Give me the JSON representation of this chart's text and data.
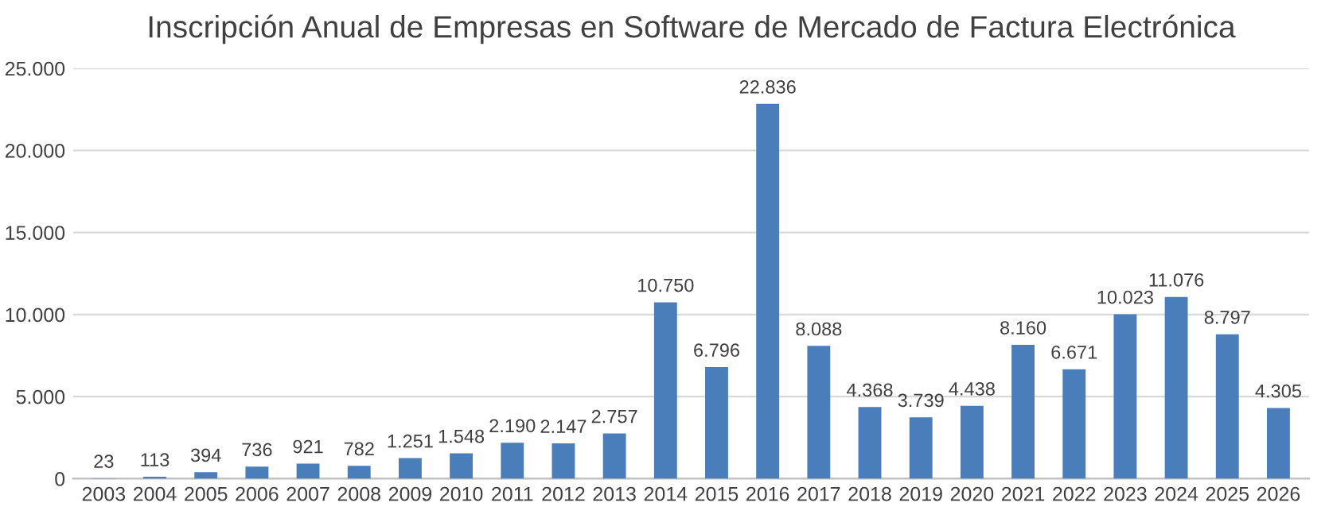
{
  "chart_data": {
    "type": "bar",
    "title": "Inscripción Anual de Empresas en Software de Mercado de Factura Electrónica",
    "categories": [
      "2003",
      "2004",
      "2005",
      "2006",
      "2007",
      "2008",
      "2009",
      "2010",
      "2011",
      "2012",
      "2013",
      "2014",
      "2015",
      "2016",
      "2017",
      "2018",
      "2019",
      "2020",
      "2021",
      "2022",
      "2023",
      "2024",
      "2025",
      "2026"
    ],
    "values": [
      23,
      113,
      394,
      736,
      921,
      782,
      1251,
      1548,
      2190,
      2147,
      2757,
      10750,
      6796,
      22836,
      8088,
      4368,
      3739,
      4438,
      8160,
      6671,
      10023,
      11076,
      8797,
      4305
    ],
    "value_labels": [
      "23",
      "113",
      "394",
      "736",
      "921",
      "782",
      "1.251",
      "1.548",
      "2.190",
      "2.147",
      "2.757",
      "10.750",
      "6.796",
      "22.836",
      "8.088",
      "4.368",
      "3.739",
      "4.438",
      "8.160",
      "6.671",
      "10.023",
      "11.076",
      "8.797",
      "4.305"
    ],
    "color": "#4a7ebb",
    "ylim": [
      0,
      25000
    ],
    "yticks": [
      0,
      {
        "value": 5000,
        "label": "5.000"
      },
      {
        "value": 10000,
        "label": "10.000"
      },
      {
        "value": 15000,
        "label": "15.000"
      },
      {
        "value": 20000,
        "label": "20.000"
      },
      {
        "value": 25000,
        "label": "25.000"
      }
    ],
    "grid": "y"
  }
}
